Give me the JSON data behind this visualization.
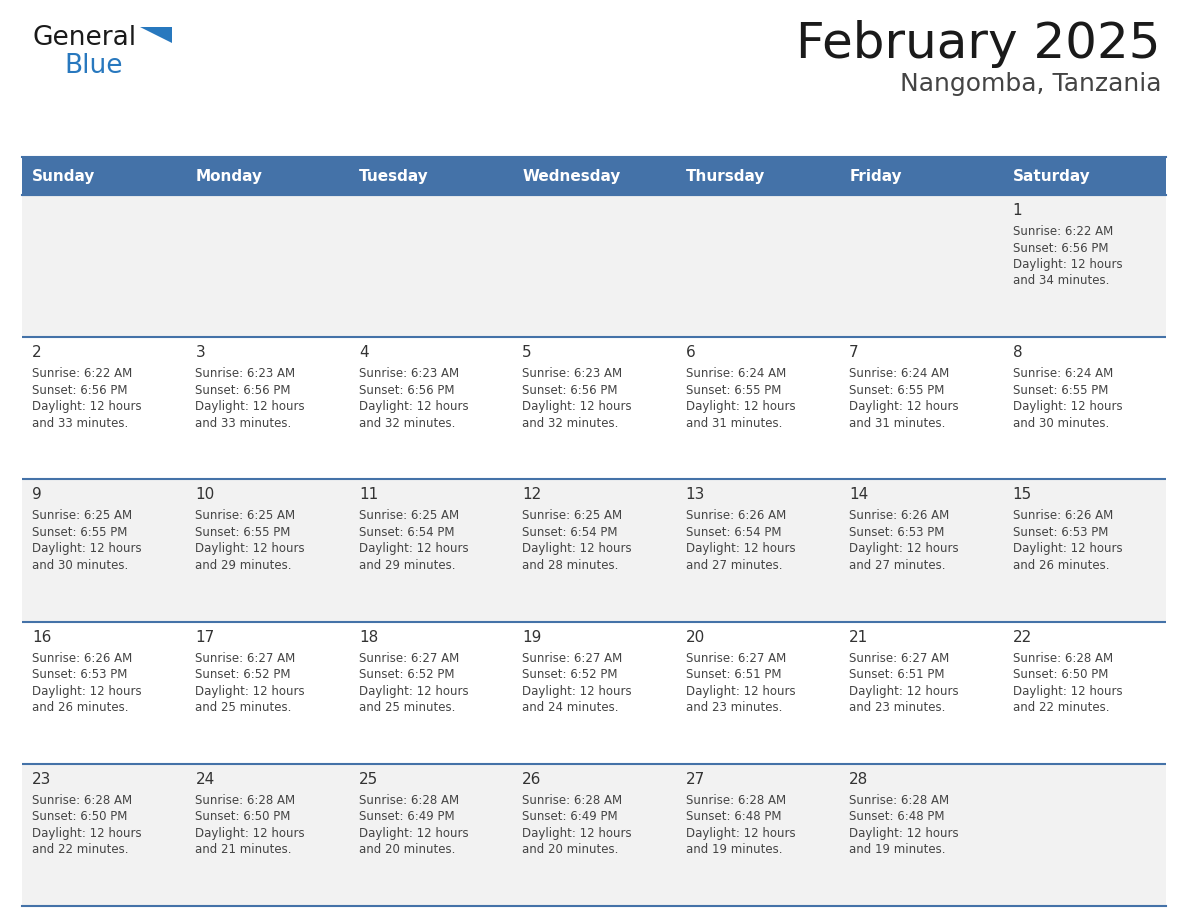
{
  "title": "February 2025",
  "subtitle": "Nangomba, Tanzania",
  "days_of_week": [
    "Sunday",
    "Monday",
    "Tuesday",
    "Wednesday",
    "Thursday",
    "Friday",
    "Saturday"
  ],
  "header_bg": "#4472A8",
  "header_text": "#FFFFFF",
  "row_bg_odd": "#F2F2F2",
  "row_bg_even": "#FFFFFF",
  "cell_text_color": "#444444",
  "day_number_color": "#333333",
  "border_color": "#4472A8",
  "title_color": "#1a1a1a",
  "subtitle_color": "#444444",
  "logo_general_color": "#1a1a1a",
  "logo_blue_color": "#2878BE",
  "calendar_data": [
    [
      null,
      null,
      null,
      null,
      null,
      null,
      {
        "day": 1,
        "sunrise": "6:22 AM",
        "sunset": "6:56 PM",
        "daylight": "12 hours\nand 34 minutes."
      }
    ],
    [
      {
        "day": 2,
        "sunrise": "6:22 AM",
        "sunset": "6:56 PM",
        "daylight": "12 hours\nand 33 minutes."
      },
      {
        "day": 3,
        "sunrise": "6:23 AM",
        "sunset": "6:56 PM",
        "daylight": "12 hours\nand 33 minutes."
      },
      {
        "day": 4,
        "sunrise": "6:23 AM",
        "sunset": "6:56 PM",
        "daylight": "12 hours\nand 32 minutes."
      },
      {
        "day": 5,
        "sunrise": "6:23 AM",
        "sunset": "6:56 PM",
        "daylight": "12 hours\nand 32 minutes."
      },
      {
        "day": 6,
        "sunrise": "6:24 AM",
        "sunset": "6:55 PM",
        "daylight": "12 hours\nand 31 minutes."
      },
      {
        "day": 7,
        "sunrise": "6:24 AM",
        "sunset": "6:55 PM",
        "daylight": "12 hours\nand 31 minutes."
      },
      {
        "day": 8,
        "sunrise": "6:24 AM",
        "sunset": "6:55 PM",
        "daylight": "12 hours\nand 30 minutes."
      }
    ],
    [
      {
        "day": 9,
        "sunrise": "6:25 AM",
        "sunset": "6:55 PM",
        "daylight": "12 hours\nand 30 minutes."
      },
      {
        "day": 10,
        "sunrise": "6:25 AM",
        "sunset": "6:55 PM",
        "daylight": "12 hours\nand 29 minutes."
      },
      {
        "day": 11,
        "sunrise": "6:25 AM",
        "sunset": "6:54 PM",
        "daylight": "12 hours\nand 29 minutes."
      },
      {
        "day": 12,
        "sunrise": "6:25 AM",
        "sunset": "6:54 PM",
        "daylight": "12 hours\nand 28 minutes."
      },
      {
        "day": 13,
        "sunrise": "6:26 AM",
        "sunset": "6:54 PM",
        "daylight": "12 hours\nand 27 minutes."
      },
      {
        "day": 14,
        "sunrise": "6:26 AM",
        "sunset": "6:53 PM",
        "daylight": "12 hours\nand 27 minutes."
      },
      {
        "day": 15,
        "sunrise": "6:26 AM",
        "sunset": "6:53 PM",
        "daylight": "12 hours\nand 26 minutes."
      }
    ],
    [
      {
        "day": 16,
        "sunrise": "6:26 AM",
        "sunset": "6:53 PM",
        "daylight": "12 hours\nand 26 minutes."
      },
      {
        "day": 17,
        "sunrise": "6:27 AM",
        "sunset": "6:52 PM",
        "daylight": "12 hours\nand 25 minutes."
      },
      {
        "day": 18,
        "sunrise": "6:27 AM",
        "sunset": "6:52 PM",
        "daylight": "12 hours\nand 25 minutes."
      },
      {
        "day": 19,
        "sunrise": "6:27 AM",
        "sunset": "6:52 PM",
        "daylight": "12 hours\nand 24 minutes."
      },
      {
        "day": 20,
        "sunrise": "6:27 AM",
        "sunset": "6:51 PM",
        "daylight": "12 hours\nand 23 minutes."
      },
      {
        "day": 21,
        "sunrise": "6:27 AM",
        "sunset": "6:51 PM",
        "daylight": "12 hours\nand 23 minutes."
      },
      {
        "day": 22,
        "sunrise": "6:28 AM",
        "sunset": "6:50 PM",
        "daylight": "12 hours\nand 22 minutes."
      }
    ],
    [
      {
        "day": 23,
        "sunrise": "6:28 AM",
        "sunset": "6:50 PM",
        "daylight": "12 hours\nand 22 minutes."
      },
      {
        "day": 24,
        "sunrise": "6:28 AM",
        "sunset": "6:50 PM",
        "daylight": "12 hours\nand 21 minutes."
      },
      {
        "day": 25,
        "sunrise": "6:28 AM",
        "sunset": "6:49 PM",
        "daylight": "12 hours\nand 20 minutes."
      },
      {
        "day": 26,
        "sunrise": "6:28 AM",
        "sunset": "6:49 PM",
        "daylight": "12 hours\nand 20 minutes."
      },
      {
        "day": 27,
        "sunrise": "6:28 AM",
        "sunset": "6:48 PM",
        "daylight": "12 hours\nand 19 minutes."
      },
      {
        "day": 28,
        "sunrise": "6:28 AM",
        "sunset": "6:48 PM",
        "daylight": "12 hours\nand 19 minutes."
      },
      null
    ]
  ],
  "num_rows": 5,
  "num_cols": 7
}
